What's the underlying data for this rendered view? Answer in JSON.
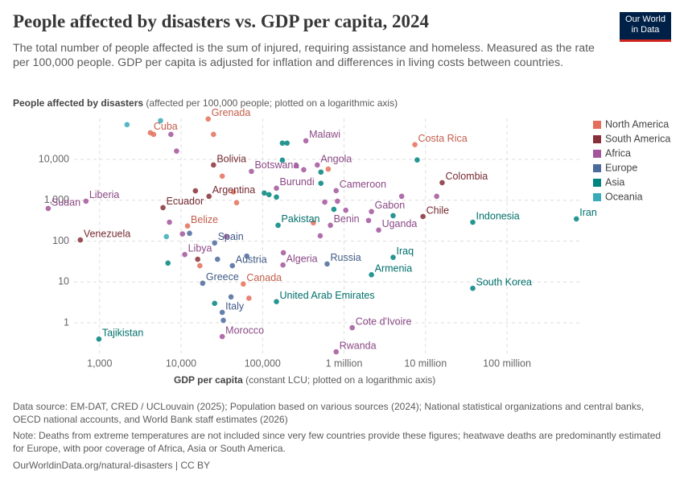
{
  "chart_data": {
    "type": "scatter",
    "title": "People affected by disasters vs. GDP per capita, 2024",
    "subtitle": "The total number of people affected is the sum of injured, requiring assistance and homeless. Measured as the rate per 100,000 people. GDP per capita is adjusted for inflation and differences in living costs between countries.",
    "logo": [
      "Our World",
      "in Data"
    ],
    "y_label": "People affected by disasters",
    "y_label_note": "(affected per 100,000 people; plotted on a logarithmic axis)",
    "x_label": "GDP per capita",
    "x_label_note": "(constant LCU; plotted on a logarithmic axis)",
    "xlog": true,
    "ylog": true,
    "grid": true,
    "xlim": [
      200,
      800000000
    ],
    "ylim": [
      0.15,
      100000
    ],
    "xticks": [
      {
        "value": 1000,
        "label": "1,000"
      },
      {
        "value": 10000,
        "label": "10,000"
      },
      {
        "value": 100000,
        "label": "100,000"
      },
      {
        "value": 1000000,
        "label": "1 million"
      },
      {
        "value": 10000000,
        "label": "10 million"
      },
      {
        "value": 100000000,
        "label": "100 million"
      }
    ],
    "yticks": [
      1,
      10,
      100,
      {
        "value": 1000,
        "label": "1,000"
      },
      {
        "value": 10000,
        "label": "10,000"
      }
    ],
    "legend": "right",
    "series": [
      {
        "name": "North America",
        "color": "#e56e5a",
        "x": [
          4200,
          21500,
          7400000,
          12000,
          58000,
          4600,
          25000,
          32000,
          44000,
          48000,
          17000,
          68000,
          640000,
          420000
        ],
        "values": [
          45000,
          98000,
          23000,
          235,
          8.9,
          41000,
          41000,
          3900,
          1600,
          870,
          25,
          4,
          5800,
          280
        ],
        "labels": [
          "Cuba",
          "Grenada",
          "Costa Rica",
          "Belize",
          "Canada",
          null,
          null,
          null,
          null,
          null,
          null,
          null,
          null,
          null
        ]
      },
      {
        "name": "South America",
        "color": "#883039",
        "x": [
          25000,
          22000,
          6000,
          580,
          16000000,
          9300000,
          15000,
          16000
        ],
        "values": [
          7300,
          1250,
          660,
          107,
          2700,
          400,
          1700,
          36
        ],
        "labels": [
          "Bolivia",
          "Argentina",
          "Ecuador",
          "Venezuela",
          "Colombia",
          "Chile",
          null,
          null
        ]
      },
      {
        "name": "Africa",
        "color": "#a2559c",
        "x": [
          340000,
          73000,
          470000,
          148000,
          800000,
          680,
          234,
          2170000,
          680000,
          2660000,
          11100,
          178000,
          1260000,
          800000,
          32000,
          8800,
          7500,
          7200,
          10400,
          320000,
          580000,
          830000,
          5100000,
          13700000,
          2000000,
          510000,
          36000,
          180000,
          260000,
          1050000
        ],
        "values": [
          28600,
          5100,
          7300,
          1970,
          1720,
          950,
          630,
          530,
          244,
          186,
          47,
          26,
          0.76,
          0.195,
          0.46,
          16000,
          41000,
          290,
          150,
          5600,
          900,
          950,
          1250,
          1250,
          320,
          135,
          130,
          52,
          7000,
          570
        ],
        "labels": [
          "Malawi",
          "Botswana",
          "Angola",
          "Burundi",
          "Cameroon",
          "Liberia",
          "Sudan",
          "Gabon",
          "Benin",
          "Uganda",
          "Libya",
          "Algeria",
          "Cote d'Ivoire",
          "Rwanda",
          "Morocco",
          null,
          null,
          null,
          null,
          null,
          null,
          null,
          null,
          null,
          null,
          null,
          null,
          null,
          null,
          null
        ]
      },
      {
        "name": "Europe",
        "color": "#4c6a9c",
        "x": [
          25800,
          42600,
          620000,
          18400,
          32000,
          12700,
          28000,
          41000,
          33000,
          64000
        ],
        "values": [
          90,
          25,
          27.6,
          9.3,
          1.8,
          155,
          36,
          4.3,
          1.15,
          43
        ],
        "labels": [
          "Spain",
          "Austria",
          "Russia",
          "Greece",
          "Italy",
          null,
          null,
          null,
          null,
          null
        ]
      },
      {
        "name": "Asia",
        "color": "#00847e",
        "x": [
          155000,
          4000000,
          2170000,
          38000000,
          148000,
          980,
          38000000,
          710000000,
          175000,
          200000,
          175000,
          520000,
          520000,
          105000,
          120000,
          148000,
          750000,
          4000000,
          7900000,
          6900,
          25800
        ],
        "values": [
          244,
          40,
          15,
          7,
          3.3,
          0.4,
          290,
          350,
          25000,
          25000,
          9600,
          4900,
          2600,
          1500,
          1370,
          1200,
          600,
          420,
          9700,
          29,
          3
        ],
        "labels": [
          "Pakistan",
          "Iraq",
          "Armenia",
          "South Korea",
          "United Arab Emirates",
          "Tajikistan",
          "Indonesia",
          "Iran",
          null,
          null,
          null,
          null,
          null,
          null,
          null,
          null,
          null,
          null,
          null,
          null,
          null
        ]
      },
      {
        "name": "Oceania",
        "color": "#38aaba",
        "x": [
          2170,
          5600,
          6600
        ],
        "values": [
          71000,
          89000,
          129
        ],
        "labels": [
          null,
          null,
          null
        ]
      }
    ],
    "source": "Data source: EM-DAT, CRED / UCLouvain (2025); Population based on various sources (2024); National statistical organizations and central banks, OECD national accounts, and World Bank staff estimates (2026)",
    "note": "Note: Deaths from extreme temperatures are not included since very few countries provide these figures; heatwave deaths are predominantly estimated for Europe, with poor coverage of Africa, Asia or South America.",
    "footer": "OurWorldinData.org/natural-disasters | CC BY"
  }
}
